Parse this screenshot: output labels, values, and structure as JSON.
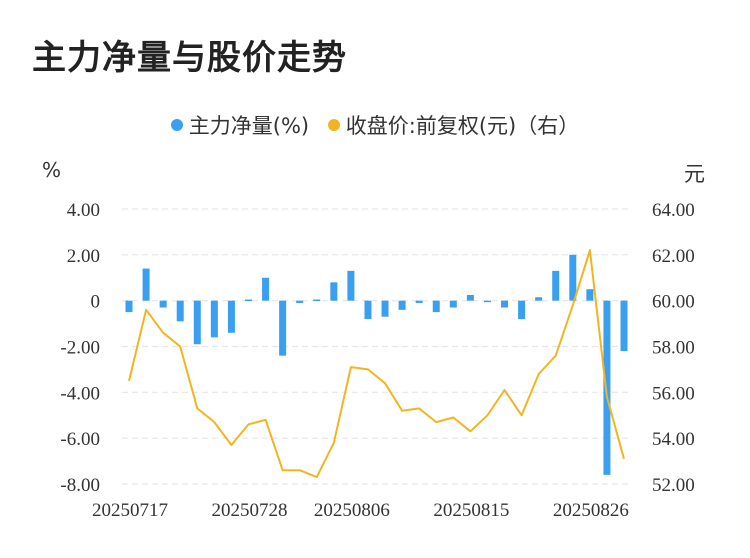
{
  "title": "主力净量与股价走势",
  "legend": {
    "net": "主力净量(%)",
    "price": "收盘价:前复权(元)（右）"
  },
  "units": {
    "left": "%",
    "right": "元"
  },
  "colors": {
    "bar": "#3a9ff0",
    "line": "#f2b521",
    "grid": "#e6e6e6"
  },
  "chart_data": {
    "type": "bar+line",
    "x_tick_labels": [
      "20250717",
      "20250728",
      "20250806",
      "20250815",
      "20250826"
    ],
    "y_left": {
      "ticks": [
        "4.00",
        "2.00",
        "0",
        "-2.00",
        "-4.00",
        "-6.00",
        "-8.00"
      ],
      "range": [
        -8,
        4
      ]
    },
    "y_right": {
      "ticks": [
        "64.00",
        "62.00",
        "60.00",
        "58.00",
        "56.00",
        "54.00",
        "52.00"
      ],
      "range": [
        52,
        64
      ]
    },
    "series": [
      {
        "name": "主力净量(%)",
        "type": "bar",
        "axis": "left",
        "values": [
          -0.5,
          1.4,
          -0.3,
          -0.9,
          -1.9,
          -1.6,
          -1.4,
          0.05,
          1.0,
          -2.4,
          -0.1,
          0.05,
          0.8,
          1.3,
          -0.8,
          -0.7,
          -0.4,
          -0.1,
          -0.5,
          -0.3,
          0.25,
          -0.05,
          -0.3,
          -0.8,
          0.15,
          1.3,
          2.0,
          0.5,
          -7.6,
          -2.2
        ]
      },
      {
        "name": "收盘价:前复权(元)（右）",
        "type": "line",
        "axis": "right",
        "values": [
          56.5,
          59.6,
          58.6,
          58.0,
          55.3,
          54.7,
          53.7,
          54.6,
          54.8,
          52.6,
          52.6,
          52.3,
          53.8,
          57.1,
          57.0,
          56.4,
          55.2,
          55.3,
          54.7,
          54.9,
          54.3,
          55.0,
          56.1,
          55.0,
          56.8,
          57.6,
          59.8,
          62.2,
          55.8,
          53.1
        ]
      }
    ]
  }
}
